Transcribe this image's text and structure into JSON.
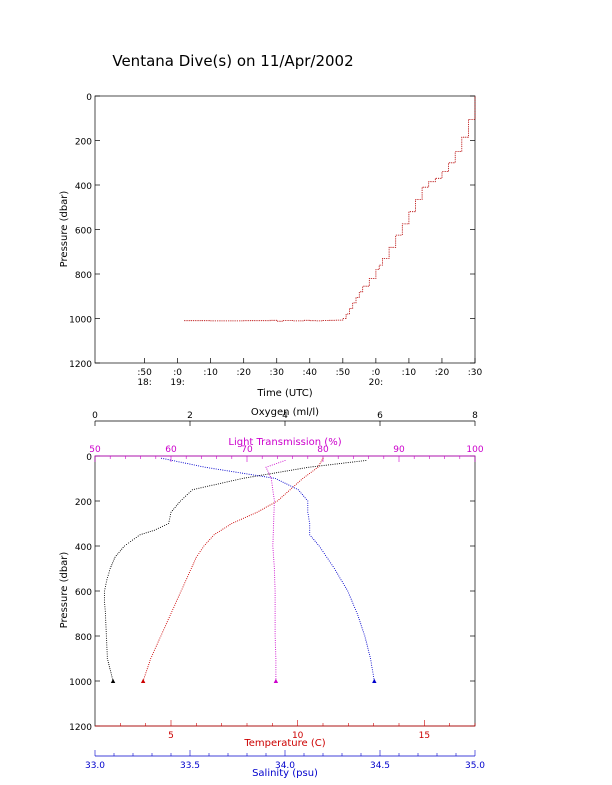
{
  "title": "Ventana Dive(s) on 11/Apr/2002",
  "colors": {
    "axis": "#000000",
    "trace_red": "#cc0000",
    "trace_black": "#000000",
    "transmission": "#cc00cc",
    "temperature": "#cc0000",
    "salinity": "#0000cc",
    "oxygen": "#000000"
  },
  "chart_data": [
    {
      "type": "line",
      "name": "pressure-vs-time",
      "xlabel": "Time (UTC)",
      "ylabel": "Pressure (dbar)",
      "ylim": [
        1200,
        0
      ],
      "y_reversed": true,
      "xlim_minutes_since_1840": [
        -5,
        110
      ],
      "x_ticks": [
        {
          "label": ":50",
          "t": 10
        },
        {
          "label": ":0",
          "t": 20
        },
        {
          "label": ":10",
          "t": 30
        },
        {
          "label": ":20",
          "t": 40
        },
        {
          "label": ":30",
          "t": 50
        },
        {
          "label": ":40",
          "t": 60
        },
        {
          "label": ":50",
          "t": 70
        },
        {
          "label": ":0",
          "t": 80
        },
        {
          "label": ":10",
          "t": 90
        },
        {
          "label": ":20",
          "t": 100
        },
        {
          "label": ":30",
          "t": 110
        }
      ],
      "hour_labels": [
        {
          "label": "18:",
          "t": 10
        },
        {
          "label": "19:",
          "t": 20
        },
        {
          "label": "20:",
          "t": 80
        }
      ],
      "y_ticks": [
        "0",
        "200",
        "400",
        "600",
        "800",
        "1000",
        "1200"
      ],
      "y_tick_values": [
        0,
        200,
        400,
        600,
        800,
        1000,
        1200
      ],
      "series": [
        {
          "x": [
            22,
            30,
            40,
            48,
            50,
            52,
            55,
            58,
            60,
            62,
            64,
            66,
            68,
            70,
            71,
            72,
            73,
            74,
            75,
            76,
            78,
            80,
            81,
            82,
            84,
            86,
            88,
            90,
            92,
            94,
            96,
            98,
            100,
            102,
            104,
            106,
            108,
            110
          ],
          "y": [
            1010,
            1011,
            1010,
            1008,
            1012,
            1009,
            1011,
            1008,
            1010,
            1011,
            1009,
            1008,
            1007,
            1000,
            980,
            955,
            930,
            905,
            880,
            855,
            820,
            780,
            760,
            730,
            680,
            625,
            575,
            520,
            465,
            410,
            385,
            370,
            340,
            300,
            250,
            185,
            105,
            0
          ]
        }
      ]
    },
    {
      "type": "scatter",
      "name": "profiles",
      "ylabel": "Pressure (dbar)",
      "ylim": [
        1200,
        0
      ],
      "y_reversed": true,
      "y_ticks": [
        "0",
        "200",
        "400",
        "600",
        "800",
        "1000",
        "1200"
      ],
      "y_tick_values": [
        0,
        200,
        400,
        600,
        800,
        1000,
        1200
      ],
      "axes": {
        "oxygen": {
          "label": "Oxygen (ml/l)",
          "lim": [
            0,
            8
          ],
          "ticks": [
            "0",
            "2",
            "4",
            "6",
            "8"
          ],
          "tick_values": [
            0,
            2,
            4,
            6,
            8
          ]
        },
        "transmission": {
          "label": "Light Transmission (%)",
          "lim": [
            50,
            100
          ],
          "ticks": [
            "50",
            "60",
            "70",
            "80",
            "90",
            "100"
          ],
          "tick_values": [
            50,
            60,
            70,
            80,
            90,
            100
          ]
        },
        "temperature": {
          "label": "Temperature (C)",
          "lim": [
            2.0,
            17.0
          ],
          "ticks": [
            "5",
            "10",
            "15"
          ],
          "tick_values": [
            5,
            10,
            15
          ]
        },
        "salinity": {
          "label": "Salinity (psu)",
          "lim": [
            33.0,
            35.0
          ],
          "ticks": [
            "33.0",
            "33.5",
            "34.0",
            "34.5",
            "35.0"
          ],
          "tick_values": [
            33.0,
            33.5,
            34.0,
            34.5,
            35.0
          ]
        }
      },
      "series": [
        {
          "axis": "oxygen",
          "p": [
            20,
            50,
            100,
            150,
            200,
            250,
            300,
            330,
            350,
            380,
            400,
            450,
            500,
            550,
            600,
            650,
            700,
            800,
            900,
            1000
          ],
          "x": [
            5.7,
            4.5,
            3.1,
            2.05,
            1.8,
            1.6,
            1.55,
            1.25,
            0.95,
            0.75,
            0.62,
            0.42,
            0.32,
            0.25,
            0.2,
            0.2,
            0.22,
            0.24,
            0.26,
            0.38
          ]
        },
        {
          "axis": "transmission",
          "p": [
            20,
            50,
            100,
            200,
            300,
            400,
            500,
            600,
            700,
            800,
            900,
            1000
          ],
          "x": [
            75.0,
            72.5,
            73.2,
            73.6,
            73.5,
            73.4,
            73.6,
            73.7,
            73.7,
            73.7,
            73.8,
            73.8
          ]
        },
        {
          "axis": "temperature",
          "p": [
            10,
            50,
            100,
            150,
            200,
            250,
            300,
            350,
            400,
            450,
            500,
            600,
            700,
            800,
            900,
            1000
          ],
          "x": [
            11.0,
            10.8,
            10.2,
            9.7,
            9.2,
            8.4,
            7.4,
            6.7,
            6.3,
            6.0,
            5.8,
            5.4,
            5.0,
            4.6,
            4.2,
            3.9
          ]
        },
        {
          "axis": "salinity",
          "p": [
            10,
            50,
            100,
            150,
            200,
            250,
            300,
            350,
            400,
            500,
            600,
            700,
            800,
            900,
            1000
          ],
          "x": [
            33.35,
            33.58,
            33.95,
            34.07,
            34.12,
            34.12,
            34.13,
            34.13,
            34.18,
            34.26,
            34.33,
            34.38,
            34.42,
            34.45,
            34.47
          ]
        }
      ]
    }
  ]
}
